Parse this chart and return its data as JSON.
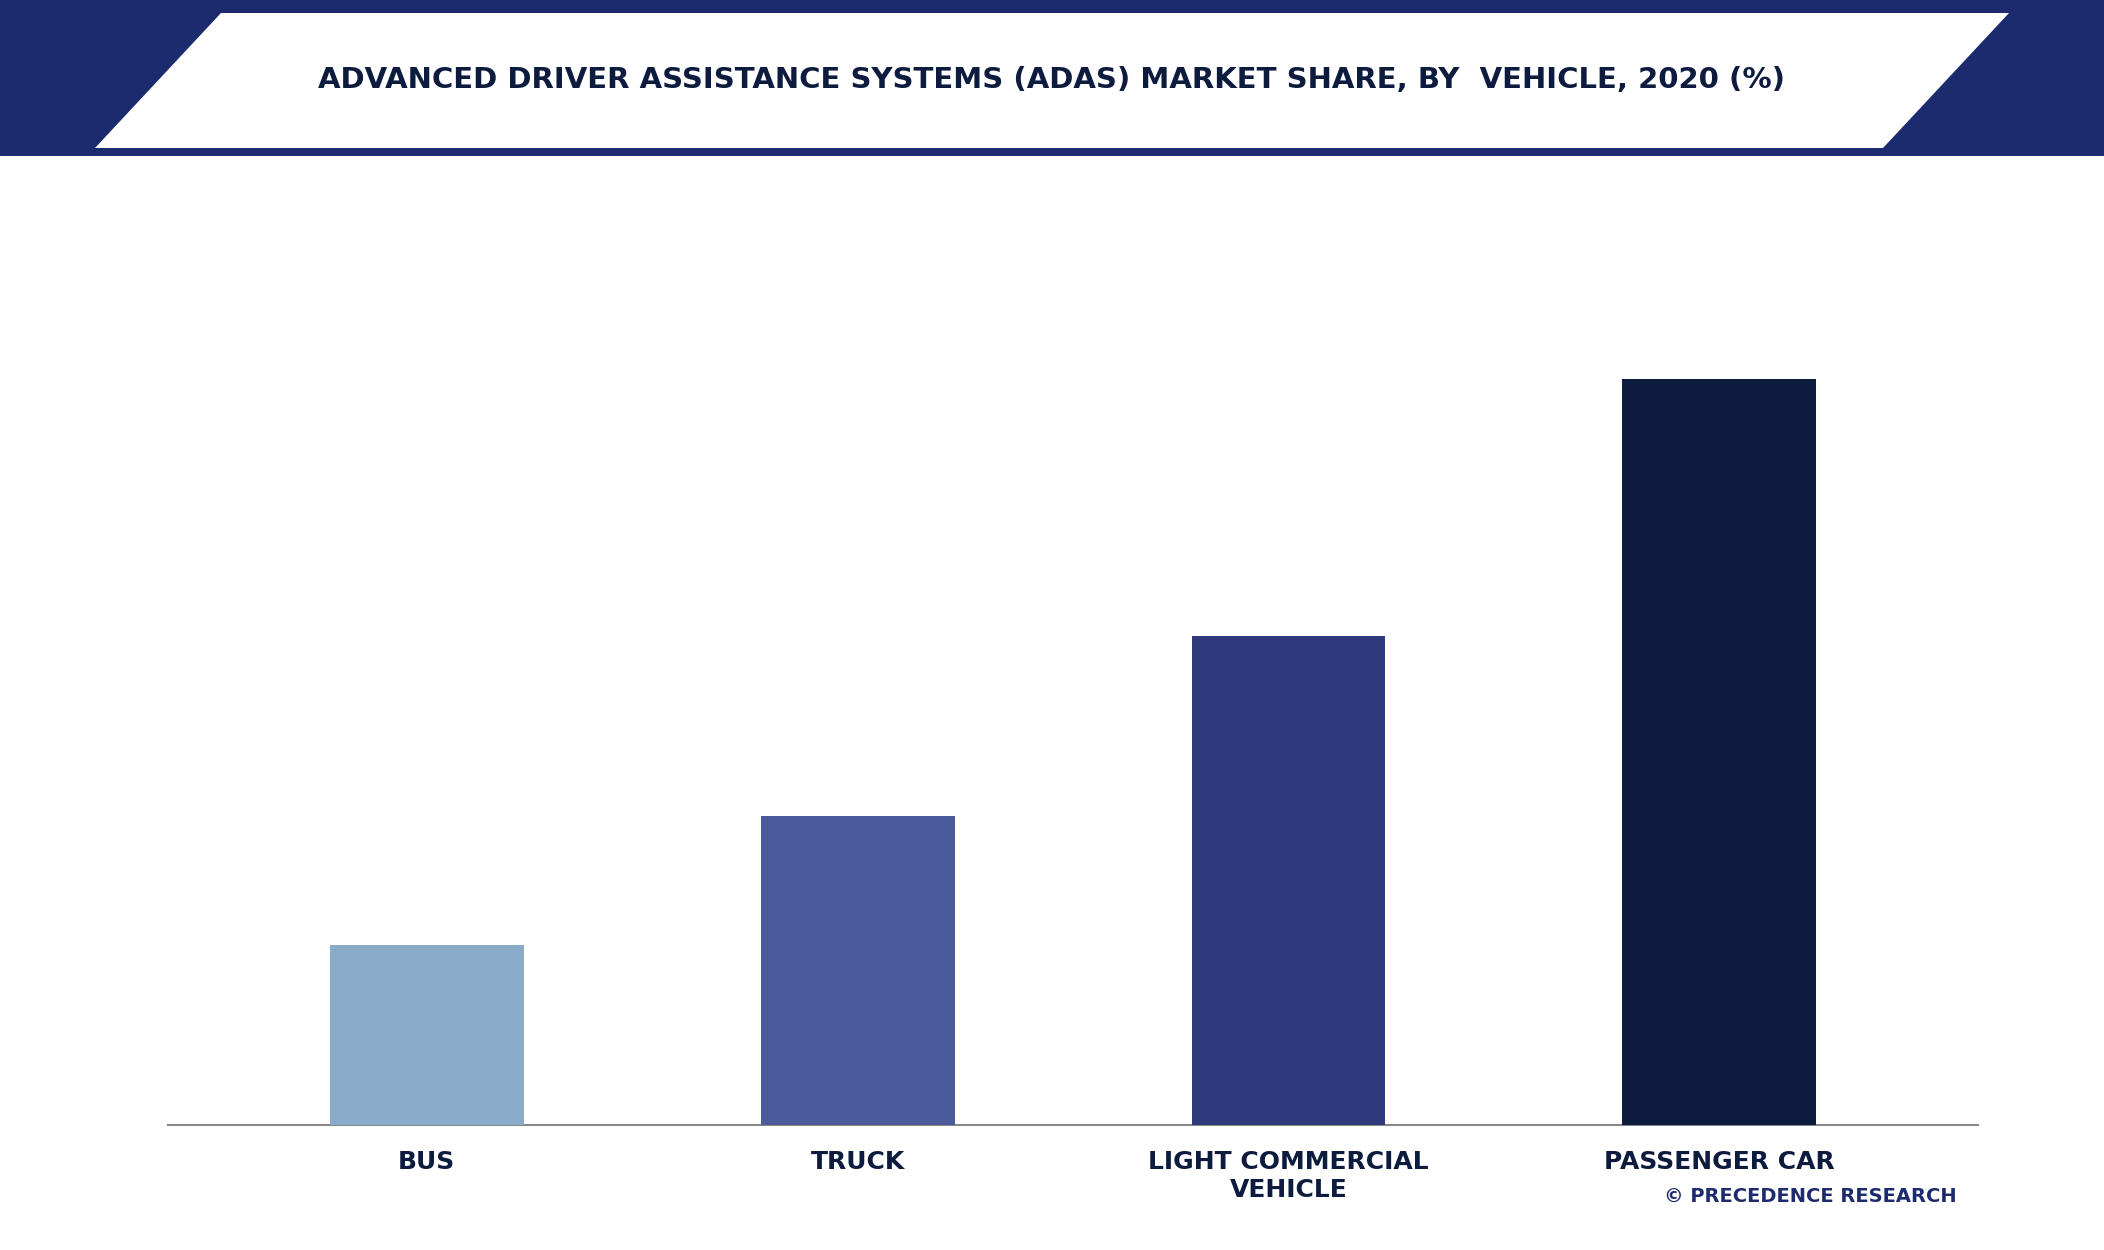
{
  "title": "ADVANCED DRIVER ASSISTANCE SYSTEMS (ADAS) MARKET SHARE, BY  VEHICLE, 2020 (%)",
  "categories": [
    "BUS",
    "TRUCK",
    "LIGHT COMMERCIAL\nVEHICLE",
    "PASSENGER CAR"
  ],
  "values": [
    14,
    24,
    38,
    58
  ],
  "bar_colors": [
    "#8AAACA",
    "#4A5A9A",
    "#2E3A7C",
    "#0D1B3E"
  ],
  "background_color": "#FFFFFF",
  "title_color": "#0D1B3E",
  "banner_color": "#1C2B6E",
  "copyright_text": "© PRECEDENCE RESEARCH",
  "copyright_color": "#1C2B6E",
  "ylim": [
    0,
    70
  ],
  "bar_width": 0.45,
  "figsize": [
    21.04,
    12.5
  ],
  "dpi": 100
}
